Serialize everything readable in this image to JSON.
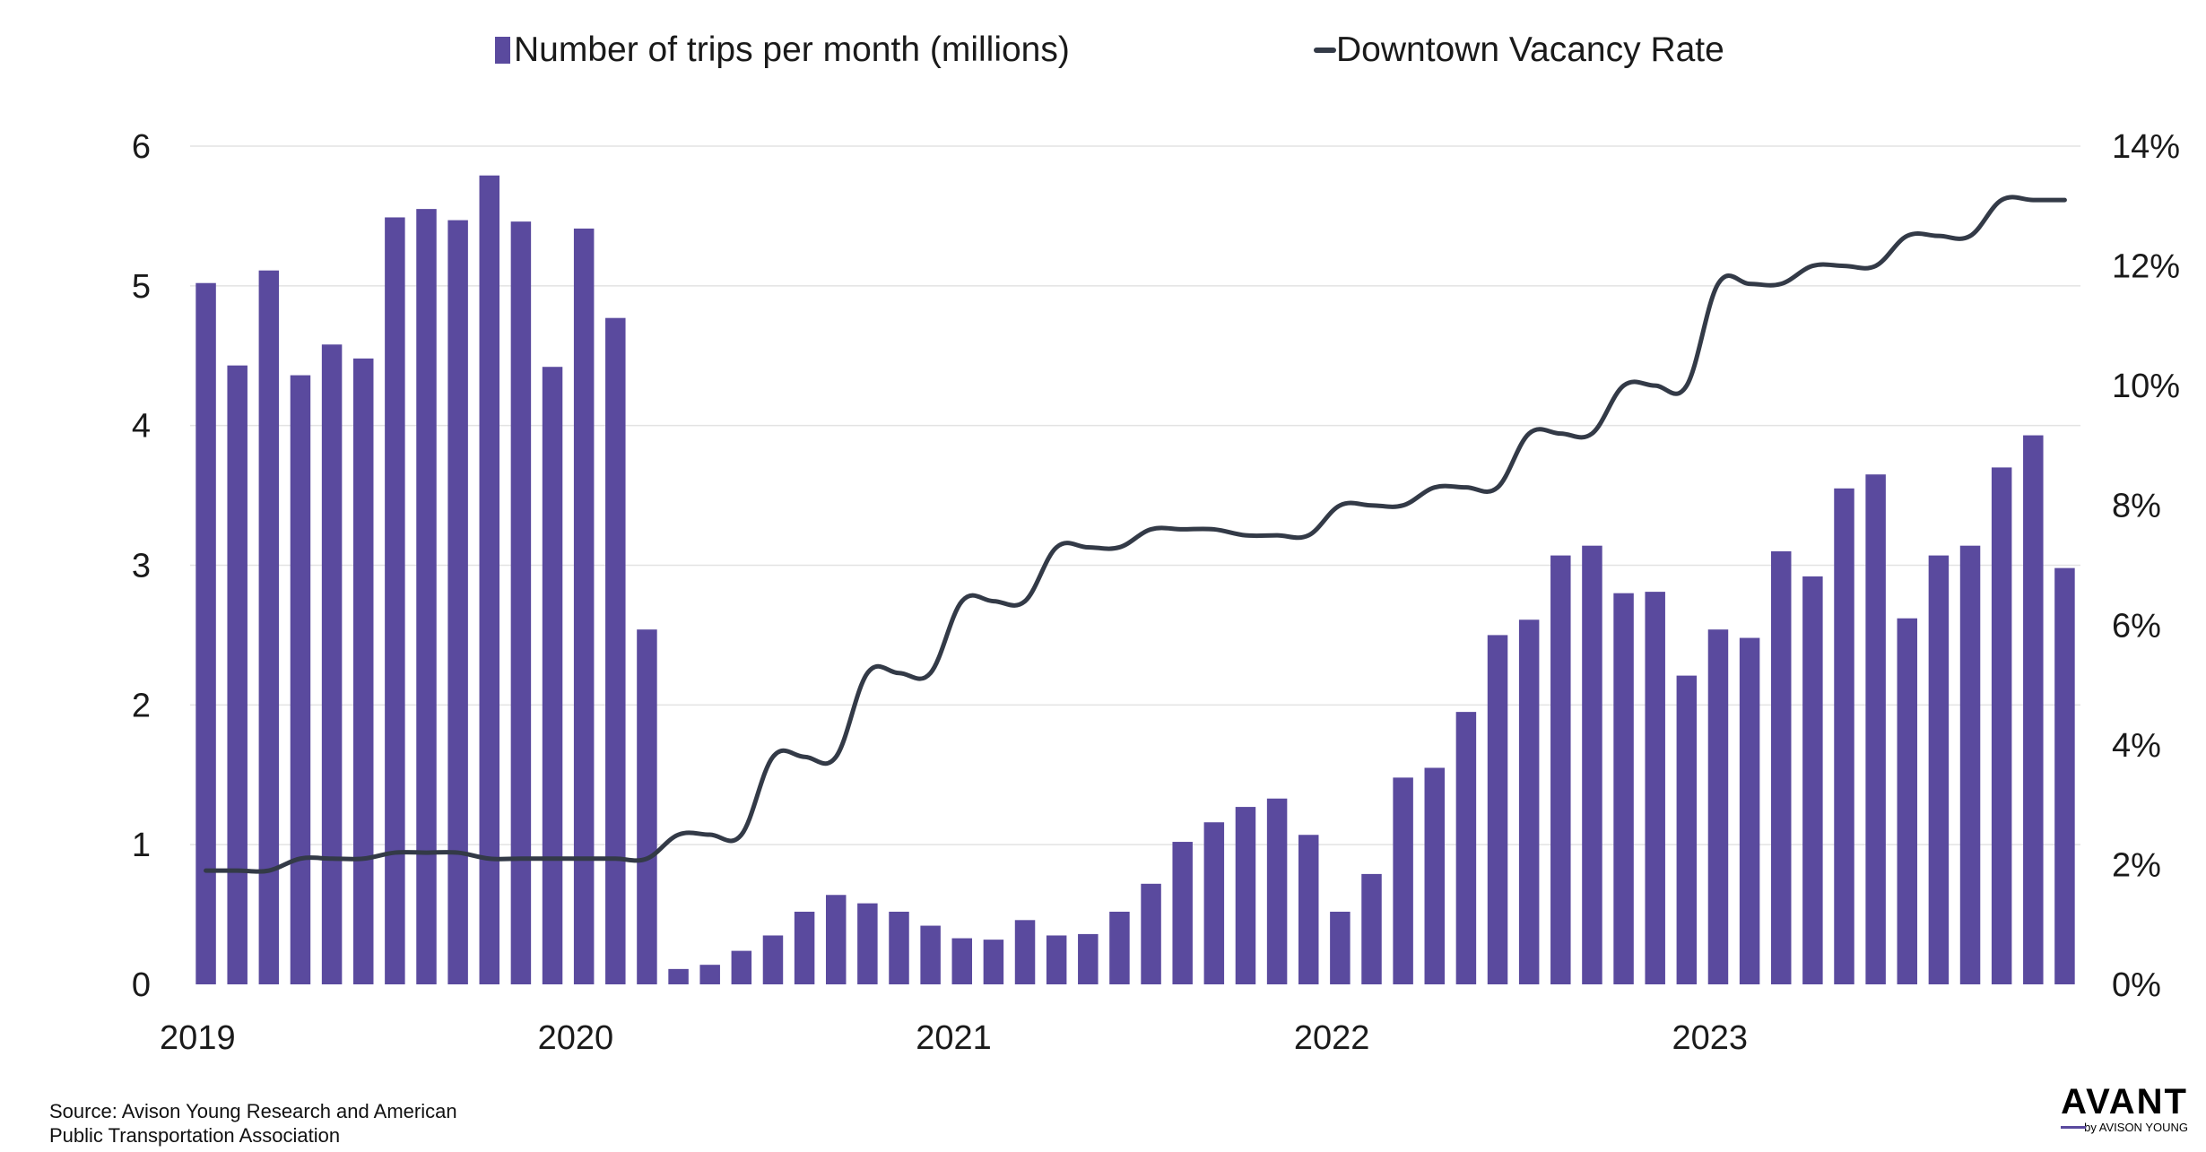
{
  "colors": {
    "bars": "#5a4a9e",
    "line": "#333a47",
    "grid": "#e3e3e3"
  },
  "chart_data": {
    "type": "bar+line",
    "title": "",
    "xlabel": "",
    "ylabel": "",
    "x_tick_labels": [
      "2019",
      "2020",
      "2021",
      "2022",
      "2023"
    ],
    "y_left_ticks": [
      "0",
      "1",
      "2",
      "3",
      "4",
      "5",
      "6"
    ],
    "y_right_ticks": [
      "0%",
      "2%",
      "4%",
      "6%",
      "8%",
      "10%",
      "12%",
      "14%"
    ],
    "y_left_range": [
      0,
      6
    ],
    "y_right_range": [
      0,
      14
    ],
    "legend_position": "top-center",
    "series": [
      {
        "name": "Number of trips per month (millions)",
        "type": "bar",
        "axis": "left",
        "values": [
          5.02,
          4.43,
          5.11,
          4.36,
          4.58,
          4.48,
          5.49,
          5.55,
          5.47,
          5.79,
          5.46,
          4.42,
          5.41,
          4.77,
          2.54,
          0.11,
          0.14,
          0.24,
          0.35,
          0.52,
          0.64,
          0.58,
          0.52,
          0.42,
          0.33,
          0.32,
          0.46,
          0.35,
          0.36,
          0.52,
          0.72,
          1.02,
          1.16,
          1.27,
          1.33,
          1.07,
          0.52,
          0.79,
          1.48,
          1.55,
          1.95,
          2.5,
          2.61,
          3.07,
          3.14,
          2.8,
          2.81,
          2.21,
          2.54,
          2.48,
          3.1,
          2.92,
          3.55,
          3.65,
          2.62,
          3.07,
          3.14,
          3.7,
          3.93,
          2.98
        ]
      },
      {
        "name": "Downtown Vacancy Rate",
        "type": "line",
        "axis": "right",
        "values": [
          1.9,
          1.9,
          1.9,
          2.1,
          2.1,
          2.1,
          2.2,
          2.2,
          2.2,
          2.1,
          2.1,
          2.1,
          2.1,
          2.1,
          2.1,
          2.5,
          2.5,
          2.5,
          3.8,
          3.8,
          3.8,
          5.2,
          5.2,
          5.2,
          6.4,
          6.4,
          6.4,
          7.3,
          7.3,
          7.3,
          7.6,
          7.6,
          7.6,
          7.5,
          7.5,
          7.5,
          8.0,
          8.0,
          8.0,
          8.3,
          8.3,
          8.3,
          9.2,
          9.2,
          9.2,
          10.0,
          10.0,
          10.0,
          11.7,
          11.7,
          11.7,
          12.0,
          12.0,
          12.0,
          12.5,
          12.5,
          12.5,
          13.1,
          13.1,
          13.1
        ]
      }
    ]
  },
  "legend": {
    "bars_label": "Number of trips per month (millions)",
    "line_label": "Downtown Vacancy Rate"
  },
  "source": {
    "line1": "Source: Avison Young Research and American",
    "line2": "Public Transportation Association"
  },
  "logo": {
    "wordmark": "AVANT",
    "byline": "by AVISON YOUNG"
  }
}
